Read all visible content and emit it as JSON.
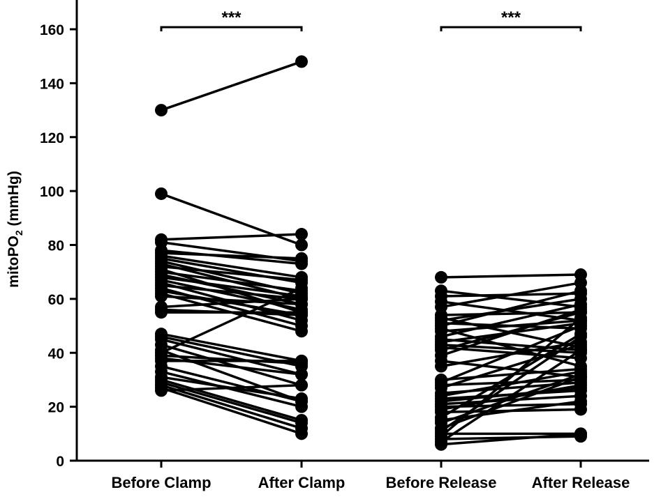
{
  "chart_data": {
    "type": "scatter",
    "subtype": "paired-dot-plot",
    "title": "",
    "ylabel": {
      "main": "mitoPO",
      "subscript": "2",
      "unit": " (mmHg)"
    },
    "ylim": [
      0,
      160
    ],
    "yticks": [
      "0",
      "20",
      "40",
      "60",
      "80",
      "100",
      "120",
      "140",
      "160"
    ],
    "categories": [
      "Before Clamp",
      "After Clamp",
      "Before Release",
      "After Release"
    ],
    "grid": false,
    "legend": "none",
    "marker_color": "#000000",
    "line_color": "#000000",
    "significance": [
      {
        "label": "***",
        "from": "Before Clamp",
        "to": "After Clamp"
      },
      {
        "label": "***",
        "from": "Before Release",
        "to": "After Release"
      }
    ],
    "clamp_pairs": [
      [
        130,
        148
      ],
      [
        99,
        80
      ],
      [
        82,
        84
      ],
      [
        81,
        74
      ],
      [
        78,
        73
      ],
      [
        77,
        75
      ],
      [
        76,
        68
      ],
      [
        75,
        66
      ],
      [
        74,
        62
      ],
      [
        73,
        60
      ],
      [
        72,
        67
      ],
      [
        71,
        55
      ],
      [
        70,
        63
      ],
      [
        69,
        58
      ],
      [
        68,
        61
      ],
      [
        67,
        56
      ],
      [
        66,
        52
      ],
      [
        65,
        60
      ],
      [
        64,
        50
      ],
      [
        63,
        54
      ],
      [
        62,
        48
      ],
      [
        61,
        58
      ],
      [
        57,
        60
      ],
      [
        56,
        54
      ],
      [
        55,
        55
      ],
      [
        47,
        37
      ],
      [
        46,
        35
      ],
      [
        45,
        32
      ],
      [
        43,
        28
      ],
      [
        41,
        22
      ],
      [
        40,
        64
      ],
      [
        39,
        36
      ],
      [
        38,
        32
      ],
      [
        37,
        37
      ],
      [
        35,
        22
      ],
      [
        33,
        20
      ],
      [
        31,
        23
      ],
      [
        30,
        15
      ],
      [
        29,
        14
      ],
      [
        28,
        12
      ],
      [
        27,
        10
      ],
      [
        26,
        28
      ]
    ],
    "release_pairs": [
      [
        68,
        69
      ],
      [
        63,
        57
      ],
      [
        61,
        62
      ],
      [
        59,
        52
      ],
      [
        57,
        66
      ],
      [
        54,
        55
      ],
      [
        53,
        42
      ],
      [
        52,
        60
      ],
      [
        51,
        49
      ],
      [
        50,
        63
      ],
      [
        49,
        35
      ],
      [
        48,
        52
      ],
      [
        46,
        58
      ],
      [
        45,
        41
      ],
      [
        44,
        51
      ],
      [
        43,
        40
      ],
      [
        42,
        38
      ],
      [
        41,
        55
      ],
      [
        39,
        56
      ],
      [
        37,
        31
      ],
      [
        35,
        44
      ],
      [
        30,
        34
      ],
      [
        29,
        50
      ],
      [
        28,
        30
      ],
      [
        27,
        43
      ],
      [
        25,
        29
      ],
      [
        24,
        33
      ],
      [
        23,
        26
      ],
      [
        22,
        27
      ],
      [
        21,
        24
      ],
      [
        20,
        21
      ],
      [
        19,
        28
      ],
      [
        18,
        19
      ],
      [
        16,
        47
      ],
      [
        15,
        22
      ],
      [
        14,
        32
      ],
      [
        12,
        31
      ],
      [
        11,
        46
      ],
      [
        10,
        10
      ],
      [
        9,
        53
      ],
      [
        8,
        9
      ],
      [
        7,
        41
      ],
      [
        6,
        10
      ]
    ]
  }
}
